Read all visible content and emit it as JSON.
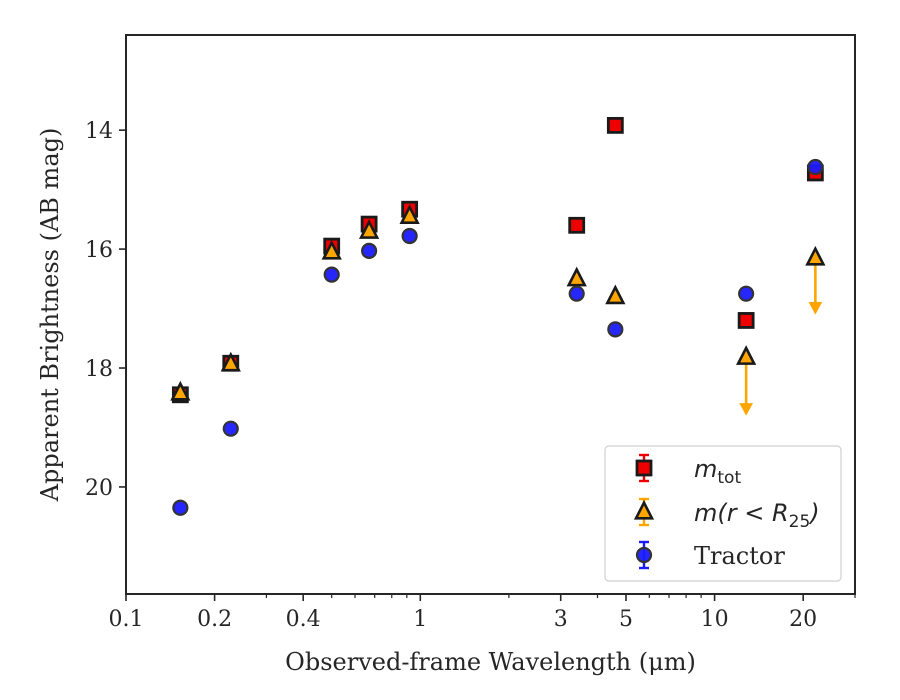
{
  "chart_data": {
    "type": "scatter",
    "xlabel": "Observed-frame Wavelength (μm)",
    "ylabel": "Apparent Brightness (AB mag)",
    "x_scale": "log",
    "xlim": [
      0.1,
      30
    ],
    "ylim": [
      21.8,
      12.4
    ],
    "y_inverted": true,
    "x_ticks": [
      {
        "value": 0.1,
        "label": "0.1"
      },
      {
        "value": 0.2,
        "label": "0.2"
      },
      {
        "value": 0.4,
        "label": "0.4"
      },
      {
        "value": 1,
        "label": "1"
      },
      {
        "value": 3,
        "label": "3"
      },
      {
        "value": 5,
        "label": "5"
      },
      {
        "value": 10,
        "label": "10"
      },
      {
        "value": 20,
        "label": "20"
      }
    ],
    "x_minor_ticks": [
      0.3,
      0.5,
      0.6,
      0.7,
      0.8,
      0.9,
      2,
      4,
      6,
      7,
      8,
      9,
      30
    ],
    "y_ticks": [
      {
        "value": 14,
        "label": "14"
      },
      {
        "value": 16,
        "label": "16"
      },
      {
        "value": 18,
        "label": "18"
      },
      {
        "value": 20,
        "label": "20"
      }
    ],
    "grid": false,
    "legend_position": "lower-right",
    "series": [
      {
        "name": "m_tot",
        "marker": "square",
        "color": "#ee0000",
        "edge": "#1a1a1a",
        "points": [
          {
            "x": 0.153,
            "y": 18.45
          },
          {
            "x": 0.227,
            "y": 17.92
          },
          {
            "x": 0.5,
            "y": 15.95
          },
          {
            "x": 0.67,
            "y": 15.58
          },
          {
            "x": 0.92,
            "y": 15.33
          },
          {
            "x": 3.4,
            "y": 15.6
          },
          {
            "x": 4.6,
            "y": 13.92
          },
          {
            "x": 12.8,
            "y": 17.2
          },
          {
            "x": 22.0,
            "y": 14.72
          }
        ]
      },
      {
        "name": "m(r<R25)",
        "marker": "triangle",
        "color": "#ffa500",
        "edge": "#1a1a1a",
        "points": [
          {
            "x": 0.153,
            "y": 18.42
          },
          {
            "x": 0.227,
            "y": 17.93
          },
          {
            "x": 0.5,
            "y": 16.05
          },
          {
            "x": 0.67,
            "y": 15.7
          },
          {
            "x": 0.92,
            "y": 15.45
          },
          {
            "x": 3.4,
            "y": 16.5
          },
          {
            "x": 4.6,
            "y": 16.8
          },
          {
            "x": 12.8,
            "y": 17.82,
            "upper_limit": true,
            "arrow_to": 18.75
          },
          {
            "x": 22.0,
            "y": 16.15,
            "upper_limit": true,
            "arrow_to": 17.05
          }
        ]
      },
      {
        "name": "Tractor",
        "marker": "circle",
        "color": "#1a1aff",
        "edge": "#333333",
        "points": [
          {
            "x": 0.153,
            "y": 20.35
          },
          {
            "x": 0.227,
            "y": 19.02
          },
          {
            "x": 0.5,
            "y": 16.43
          },
          {
            "x": 0.67,
            "y": 16.03
          },
          {
            "x": 0.92,
            "y": 15.78
          },
          {
            "x": 3.4,
            "y": 16.75
          },
          {
            "x": 4.6,
            "y": 17.35
          },
          {
            "x": 12.8,
            "y": 16.75
          },
          {
            "x": 22.0,
            "y": 14.62
          }
        ]
      }
    ],
    "legend": [
      {
        "series": "m_tot",
        "label_main": "m",
        "label_sub": "tot"
      },
      {
        "series": "m(r<R25)",
        "label_main": "m(r < R",
        "label_sub": "25",
        "label_tail": ")"
      },
      {
        "series": "Tractor",
        "label": "Tractor"
      }
    ]
  }
}
